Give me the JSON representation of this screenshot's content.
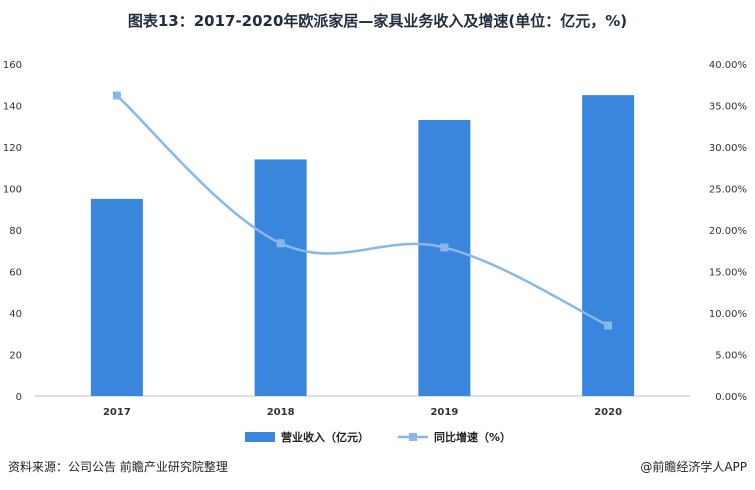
{
  "title": "图表13：2017-2020年欧派家居—家具业务收入及增速(单位：亿元，%)",
  "source": "资料来源：公司公告 前瞻产业研究院整理",
  "brand": "@前瞻经济学人APP",
  "chart_data": {
    "type": "bar+line",
    "categories": [
      "2017",
      "2018",
      "2019",
      "2020"
    ],
    "series": [
      {
        "name": "营业收入（亿元）",
        "type": "bar",
        "axis": "left",
        "color": "#3a86dc",
        "values": [
          95,
          114,
          133,
          145
        ]
      },
      {
        "name": "同比增速（%）",
        "type": "line",
        "axis": "right",
        "color": "#8ab7e9",
        "values": [
          36.2,
          18.4,
          17.9,
          8.5
        ]
      }
    ],
    "y_left": {
      "min": 0,
      "max": 160,
      "ticks": [
        "0",
        "20",
        "40",
        "60",
        "80",
        "100",
        "120",
        "140",
        "160"
      ]
    },
    "y_right": {
      "min": 0,
      "max": 40,
      "ticks": [
        "0.00%",
        "5.00%",
        "10.00%",
        "15.00%",
        "20.00%",
        "25.00%",
        "30.00%",
        "35.00%",
        "40.00%"
      ]
    },
    "grid": false,
    "legend_position": "bottom"
  }
}
